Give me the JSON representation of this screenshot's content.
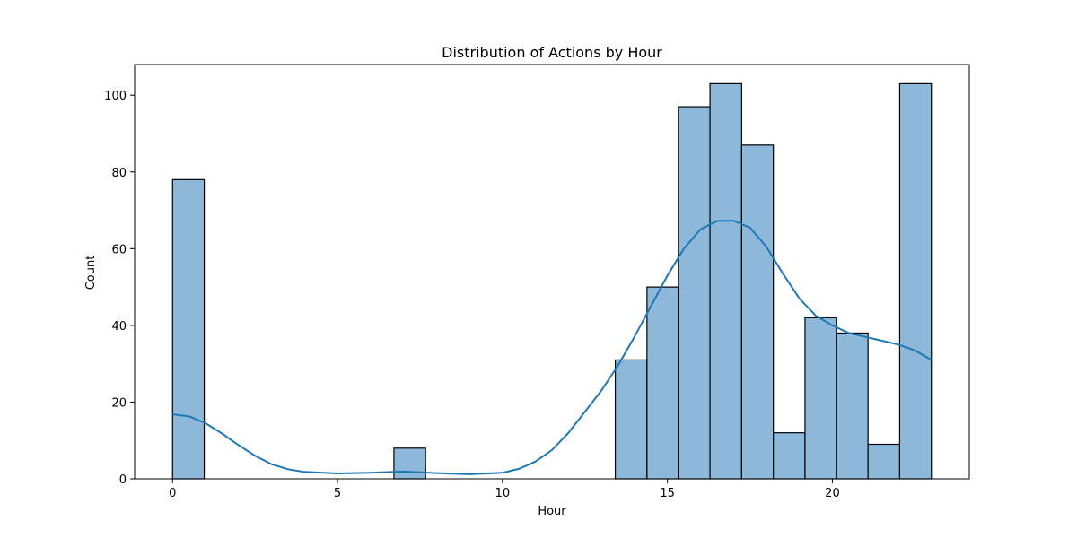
{
  "chart_data": {
    "type": "bar",
    "title": "Distribution of Actions by Hour",
    "xlabel": "Hour",
    "ylabel": "Count",
    "xlim": [
      -1.15,
      24.15
    ],
    "ylim": [
      0,
      108
    ],
    "xticks": [
      0,
      5,
      10,
      15,
      20
    ],
    "yticks": [
      0,
      20,
      40,
      60,
      80,
      100
    ],
    "grid": false,
    "bar_color": "#8db8da",
    "bar_edge_color": "#000000",
    "kde_color": "#1f77b4",
    "bins": [
      {
        "x0": 0.0,
        "x1": 0.96,
        "count": 78
      },
      {
        "x0": 0.96,
        "x1": 1.92,
        "count": 0
      },
      {
        "x0": 1.92,
        "x1": 2.88,
        "count": 0
      },
      {
        "x0": 2.88,
        "x1": 3.83,
        "count": 0
      },
      {
        "x0": 3.83,
        "x1": 4.79,
        "count": 0
      },
      {
        "x0": 4.79,
        "x1": 5.75,
        "count": 0
      },
      {
        "x0": 5.75,
        "x1": 6.71,
        "count": 0
      },
      {
        "x0": 6.71,
        "x1": 7.67,
        "count": 8
      },
      {
        "x0": 7.67,
        "x1": 8.63,
        "count": 0
      },
      {
        "x0": 8.63,
        "x1": 9.58,
        "count": 0
      },
      {
        "x0": 9.58,
        "x1": 10.54,
        "count": 0
      },
      {
        "x0": 10.54,
        "x1": 11.5,
        "count": 0
      },
      {
        "x0": 11.5,
        "x1": 12.46,
        "count": 0
      },
      {
        "x0": 12.46,
        "x1": 13.42,
        "count": 0
      },
      {
        "x0": 13.42,
        "x1": 14.38,
        "count": 31
      },
      {
        "x0": 14.38,
        "x1": 15.33,
        "count": 50
      },
      {
        "x0": 15.33,
        "x1": 16.29,
        "count": 97
      },
      {
        "x0": 16.29,
        "x1": 17.25,
        "count": 103
      },
      {
        "x0": 17.25,
        "x1": 18.21,
        "count": 87
      },
      {
        "x0": 18.21,
        "x1": 19.17,
        "count": 12
      },
      {
        "x0": 19.17,
        "x1": 20.13,
        "count": 42
      },
      {
        "x0": 20.13,
        "x1": 21.08,
        "count": 38
      },
      {
        "x0": 21.08,
        "x1": 22.04,
        "count": 9
      },
      {
        "x0": 22.04,
        "x1": 23.0,
        "count": 103
      }
    ],
    "kde": [
      {
        "x": 0,
        "y": 16.8
      },
      {
        "x": 0.5,
        "y": 16.3
      },
      {
        "x": 1,
        "y": 14.5
      },
      {
        "x": 1.5,
        "y": 11.8
      },
      {
        "x": 2,
        "y": 8.8
      },
      {
        "x": 2.5,
        "y": 6.0
      },
      {
        "x": 3,
        "y": 3.8
      },
      {
        "x": 3.5,
        "y": 2.5
      },
      {
        "x": 4,
        "y": 1.8
      },
      {
        "x": 5,
        "y": 1.4
      },
      {
        "x": 6,
        "y": 1.6
      },
      {
        "x": 7,
        "y": 1.9
      },
      {
        "x": 8,
        "y": 1.5
      },
      {
        "x": 9,
        "y": 1.2
      },
      {
        "x": 10,
        "y": 1.6
      },
      {
        "x": 10.5,
        "y": 2.6
      },
      {
        "x": 11,
        "y": 4.5
      },
      {
        "x": 11.5,
        "y": 7.5
      },
      {
        "x": 12,
        "y": 12.0
      },
      {
        "x": 12.5,
        "y": 17.5
      },
      {
        "x": 13,
        "y": 23.0
      },
      {
        "x": 13.5,
        "y": 29.5
      },
      {
        "x": 14,
        "y": 37.0
      },
      {
        "x": 14.5,
        "y": 45.0
      },
      {
        "x": 15,
        "y": 53.0
      },
      {
        "x": 15.5,
        "y": 60.0
      },
      {
        "x": 16,
        "y": 65.0
      },
      {
        "x": 16.5,
        "y": 67.2
      },
      {
        "x": 17,
        "y": 67.3
      },
      {
        "x": 17.5,
        "y": 65.5
      },
      {
        "x": 18,
        "y": 60.5
      },
      {
        "x": 18.5,
        "y": 53.5
      },
      {
        "x": 19,
        "y": 47.0
      },
      {
        "x": 19.5,
        "y": 42.5
      },
      {
        "x": 20,
        "y": 40.0
      },
      {
        "x": 20.5,
        "y": 38.0
      },
      {
        "x": 21,
        "y": 37.0
      },
      {
        "x": 21.5,
        "y": 36.0
      },
      {
        "x": 22,
        "y": 35.0
      },
      {
        "x": 22.5,
        "y": 33.5
      },
      {
        "x": 23,
        "y": 31.0
      }
    ]
  }
}
